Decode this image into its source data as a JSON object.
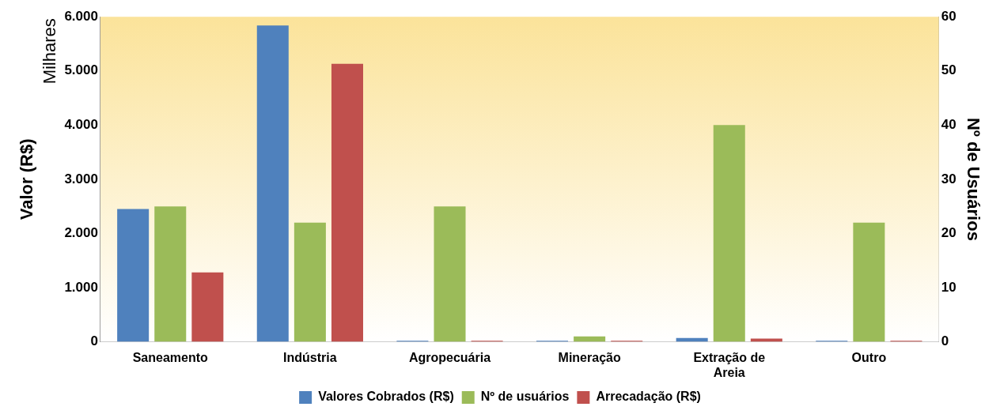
{
  "chart_data": {
    "type": "bar",
    "ylabel": "Valor (R$)",
    "y2label": "Nº de Usuários",
    "annotations": [
      "Milhares"
    ],
    "categories": [
      "Saneamento",
      "Indústria",
      "Agropecuária",
      "Mineração",
      [
        "Extração de",
        "Areia"
      ],
      "Outro"
    ],
    "series": [
      {
        "name": "Valores Cobrados (R$)",
        "color": "#4f81bd",
        "values": [
          2450,
          5840,
          20,
          20,
          70,
          20
        ]
      },
      {
        "name": "Nº de usuários",
        "color": "#9bbb59",
        "axis": "y2",
        "values": [
          25,
          22,
          25,
          1,
          40,
          22
        ]
      },
      {
        "name": "Arrecadação (R$)",
        "color": "#c0504d",
        "values": [
          1280,
          5130,
          20,
          20,
          60,
          20
        ]
      }
    ],
    "ylim": [
      0,
      6000
    ],
    "yticks": [
      {
        "value": 0,
        "label": "0"
      },
      {
        "value": 1000,
        "label": "1.000"
      },
      {
        "value": 2000,
        "label": "2.000"
      },
      {
        "value": 3000,
        "label": "3.000"
      },
      {
        "value": 4000,
        "label": "4.000"
      },
      {
        "value": 5000,
        "label": "5.000"
      },
      {
        "value": 6000,
        "label": "6.000"
      }
    ],
    "y2lim": [
      0,
      60
    ],
    "y2ticks": [
      0,
      10,
      20,
      30,
      40,
      50,
      60
    ],
    "grid": false,
    "legend": "bottom"
  }
}
